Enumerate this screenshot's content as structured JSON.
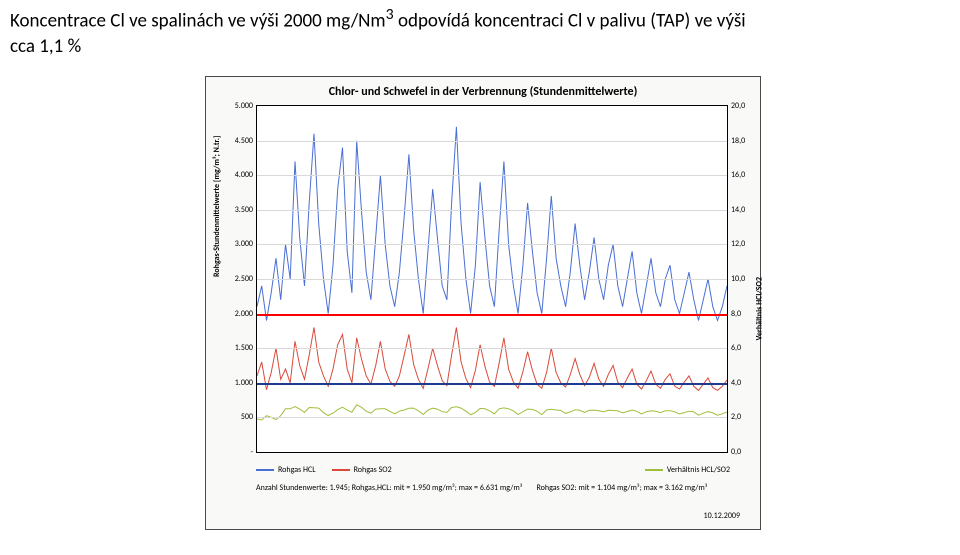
{
  "header": {
    "line1": "Koncentrace Cl ve spalinách ve výši 2000 mg/Nm",
    "sup": "3",
    "line1b": " odpovídá koncentraci Cl v palivu (TAP) ve výši",
    "line2": "cca 1,1 %"
  },
  "chart": {
    "type": "line",
    "title": "Chlor- und Schwefel in der Verbrennung (Stundenmittelwerte)",
    "title_fontsize": 12,
    "background_color": "#ffffff",
    "grid_color": "#d9d9d9",
    "y_left": {
      "title": "Rohgas-Stundenmittelwerte [mg/m³; N.tr.]",
      "min": 0,
      "max": 5000,
      "tick_step": 500,
      "ticks": [
        "-",
        "500",
        "1.000",
        "1.500",
        "2.000",
        "2.500",
        "3.000",
        "3.500",
        "4.000",
        "4.500",
        "5.000"
      ],
      "fontsize": 8
    },
    "y_right": {
      "title": "Verhältnis HCl/SO2",
      "min": 0,
      "max": 20,
      "tick_step": 2,
      "ticks": [
        "0,0",
        "2,0",
        "4,0",
        "6,0",
        "8,0",
        "10,0",
        "12,0",
        "14,0",
        "16,0",
        "18,0",
        "20,0"
      ],
      "fontsize": 8
    },
    "ref_lines": [
      {
        "value_left": 2000,
        "color": "#ff0000",
        "width": 2
      },
      {
        "value_left": 1000,
        "color": "#1f3b8f",
        "width": 2
      }
    ],
    "series": [
      {
        "name": "Rohgas HCL",
        "axis": "left",
        "color": "#4a6fd4",
        "line_width": 1,
        "values": [
          2100,
          2400,
          1900,
          2300,
          2800,
          2200,
          3000,
          2500,
          4200,
          3100,
          2400,
          3600,
          4600,
          3300,
          2500,
          2000,
          2700,
          3800,
          4400,
          2900,
          2300,
          4500,
          3500,
          2600,
          2200,
          3100,
          4000,
          3000,
          2400,
          2100,
          2600,
          3400,
          4300,
          3200,
          2500,
          2000,
          2900,
          3800,
          3100,
          2400,
          2200,
          3600,
          4700,
          3300,
          2500,
          2000,
          2700,
          3900,
          3100,
          2400,
          2100,
          3200,
          4200,
          3000,
          2400,
          2000,
          2700,
          3600,
          2900,
          2300,
          2000,
          2800,
          3700,
          2800,
          2400,
          2100,
          2600,
          3300,
          2700,
          2200,
          2600,
          3100,
          2500,
          2200,
          2700,
          3000,
          2400,
          2100,
          2500,
          2900,
          2300,
          2000,
          2400,
          2800,
          2300,
          2100,
          2500,
          2700,
          2200,
          2000,
          2300,
          2600,
          2200,
          1900,
          2200,
          2500,
          2100,
          1900,
          2100,
          2400
        ]
      },
      {
        "name": "Rohgas SO2",
        "axis": "left",
        "color": "#d94a3a",
        "line_width": 1,
        "values": [
          1100,
          1300,
          900,
          1150,
          1500,
          1050,
          1200,
          1000,
          1600,
          1250,
          1050,
          1400,
          1800,
          1300,
          1100,
          950,
          1200,
          1550,
          1700,
          1200,
          1000,
          1650,
          1350,
          1100,
          980,
          1250,
          1600,
          1200,
          1020,
          950,
          1100,
          1400,
          1700,
          1260,
          1050,
          920,
          1200,
          1500,
          1250,
          1030,
          960,
          1400,
          1800,
          1300,
          1060,
          930,
          1180,
          1550,
          1240,
          1010,
          950,
          1280,
          1650,
          1200,
          1010,
          920,
          1160,
          1450,
          1180,
          980,
          920,
          1150,
          1500,
          1150,
          1000,
          940,
          1120,
          1350,
          1120,
          960,
          1080,
          1280,
          1050,
          950,
          1120,
          1250,
          1010,
          930,
          1070,
          1200,
          980,
          910,
          1030,
          1170,
          980,
          920,
          1050,
          1130,
          950,
          910,
          1010,
          1100,
          950,
          890,
          980,
          1070,
          930,
          890,
          950,
          1040
        ]
      },
      {
        "name": "Verhältnis HCL/SO2",
        "axis": "right",
        "color": "#9fbf3b",
        "line_width": 1,
        "values": [
          1.9,
          1.85,
          2.1,
          2.0,
          1.87,
          2.1,
          2.5,
          2.5,
          2.63,
          2.48,
          2.29,
          2.57,
          2.56,
          2.54,
          2.27,
          2.11,
          2.25,
          2.45,
          2.59,
          2.42,
          2.3,
          2.73,
          2.59,
          2.36,
          2.24,
          2.48,
          2.5,
          2.5,
          2.35,
          2.21,
          2.36,
          2.43,
          2.53,
          2.54,
          2.38,
          2.17,
          2.42,
          2.53,
          2.48,
          2.33,
          2.29,
          2.57,
          2.61,
          2.54,
          2.36,
          2.15,
          2.29,
          2.52,
          2.5,
          2.38,
          2.21,
          2.5,
          2.55,
          2.5,
          2.38,
          2.17,
          2.33,
          2.48,
          2.46,
          2.35,
          2.17,
          2.43,
          2.47,
          2.43,
          2.4,
          2.23,
          2.32,
          2.44,
          2.41,
          2.29,
          2.41,
          2.42,
          2.38,
          2.32,
          2.41,
          2.4,
          2.38,
          2.26,
          2.34,
          2.42,
          2.35,
          2.2,
          2.33,
          2.39,
          2.35,
          2.28,
          2.38,
          2.39,
          2.32,
          2.2,
          2.28,
          2.36,
          2.32,
          2.13,
          2.24,
          2.34,
          2.26,
          2.13,
          2.21,
          2.31
        ]
      }
    ],
    "legend": {
      "items": [
        {
          "label": "Rohgas HCL",
          "color": "#4a6fd4"
        },
        {
          "label": "Rohgas SO2",
          "color": "#d94a3a"
        },
        {
          "label": "Verhältnis HCL/SO2",
          "color": "#9fbf3b"
        }
      ],
      "fontsize": 8
    },
    "caption": {
      "left": "Anzahl Stundenwerte: 1.945; Rohgas,HCL: mit = 1.950 mg/m³; max = 6.631 mg/m³",
      "right": "Rohgas SO2: mit = 1.104 mg/m³; max = 3.162 mg/m³",
      "fontsize": 8
    },
    "date": "10.12.2009"
  }
}
